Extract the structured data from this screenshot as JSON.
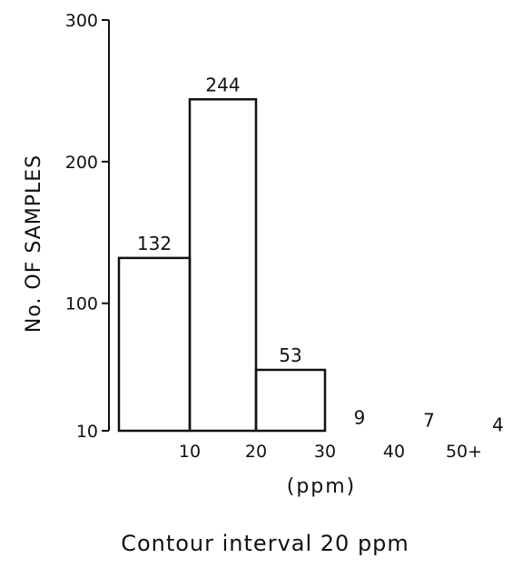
{
  "chart_data": {
    "type": "bar",
    "categories": [
      "0-10",
      "10-20",
      "20-30",
      "30-40",
      "40-50",
      "50+"
    ],
    "values": [
      132,
      244,
      53,
      9,
      7,
      4
    ],
    "data_labels": [
      "132",
      "244",
      "53",
      "9",
      "7",
      "4"
    ],
    "x_tick_labels": [
      "10",
      "20",
      "30",
      "40",
      "50+"
    ],
    "y_tick_labels": [
      "10",
      "100",
      "200",
      "300"
    ],
    "y_ticks": [
      10,
      100,
      200,
      300
    ],
    "ylim": [
      10,
      300
    ],
    "xlabel": "(ppm)",
    "ylabel": "No. OF SAMPLES",
    "caption": "Contour interval 20 ppm",
    "grid": false,
    "legend": "none",
    "bar_style": "outline",
    "stroke_color": "#111111"
  }
}
